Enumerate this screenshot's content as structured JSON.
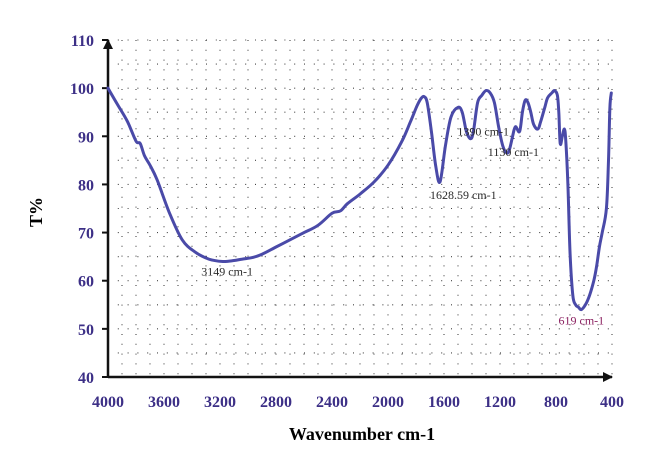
{
  "chart_data": {
    "type": "line",
    "xlabel": "Wavenumber cm-1",
    "ylabel": "T%",
    "xlim": [
      4000,
      400
    ],
    "ylim": [
      40,
      110
    ],
    "x_reversed": true,
    "grid": "dotted",
    "x_ticks": [
      "4000",
      "3600",
      "3200",
      "2800",
      "2400",
      "2000",
      "1600",
      "1200",
      "800",
      "400"
    ],
    "y_ticks": [
      "40",
      "50",
      "60",
      "70",
      "80",
      "90",
      "100",
      "110"
    ],
    "colors": {
      "line": "#4a4aa8",
      "axis": "#111111",
      "tick_text": "#3c2f86",
      "annotation": "#2b2b2b",
      "annotation_619": "#8a2060"
    },
    "series": [
      {
        "x": [
          4000,
          3930,
          3860,
          3800,
          3770,
          3740,
          3700,
          3650,
          3560,
          3470,
          3380,
          3280,
          3180,
          3100,
          3040,
          2970,
          2900,
          2800,
          2700,
          2600,
          2500,
          2400,
          2340,
          2290,
          2200,
          2100,
          2000,
          1900,
          1840,
          1790,
          1760,
          1740,
          1720,
          1690,
          1660,
          1628.59,
          1590,
          1550,
          1500,
          1470,
          1440,
          1410,
          1390,
          1360,
          1330,
          1300,
          1270,
          1240,
          1210,
          1180,
          1150,
          1130,
          1110,
          1090,
          1060,
          1040,
          1020,
          1000,
          980,
          960,
          930,
          910,
          880,
          860,
          830,
          810,
          790,
          780,
          770,
          755,
          740,
          730,
          715,
          700,
          680,
          660,
          640,
          619,
          590,
          560,
          530,
          510,
          490,
          470,
          440,
          425,
          415,
          405
        ],
        "y": [
          100,
          96.5,
          93,
          89,
          88.5,
          86,
          84,
          81,
          74,
          68.5,
          66,
          64.5,
          64,
          64.2,
          64.5,
          64.8,
          65.5,
          67,
          68.5,
          70,
          71.5,
          74,
          74.5,
          76,
          78,
          80.5,
          84,
          89,
          93,
          96.5,
          98,
          98.2,
          97,
          91,
          84,
          80.5,
          88,
          94,
          96,
          95,
          91,
          89.5,
          91,
          97,
          98.5,
          99.5,
          99,
          97,
          92,
          88,
          86.5,
          87.5,
          90,
          92,
          91,
          95,
          97.5,
          97,
          95,
          92.5,
          91.5,
          93,
          96,
          98,
          99,
          99.5,
          98.5,
          95,
          88.5,
          90,
          91.5,
          89,
          80,
          66,
          57,
          55,
          54.5,
          54,
          55,
          57,
          60,
          63,
          67,
          70,
          75,
          85,
          96,
          99
        ]
      }
    ],
    "annotations": [
      {
        "text": "3149 cm-1",
        "x": 3149,
        "y": 64
      },
      {
        "text": "1628.59 cm-1",
        "x": 1628.59,
        "y": 80.5
      },
      {
        "text": "1390 cm-1",
        "x": 1390,
        "y": 89.5
      },
      {
        "text": "1130 cm-1",
        "x": 1130,
        "y": 86.5
      },
      {
        "text": "619 cm-1",
        "x": 619,
        "y": 54
      }
    ]
  }
}
